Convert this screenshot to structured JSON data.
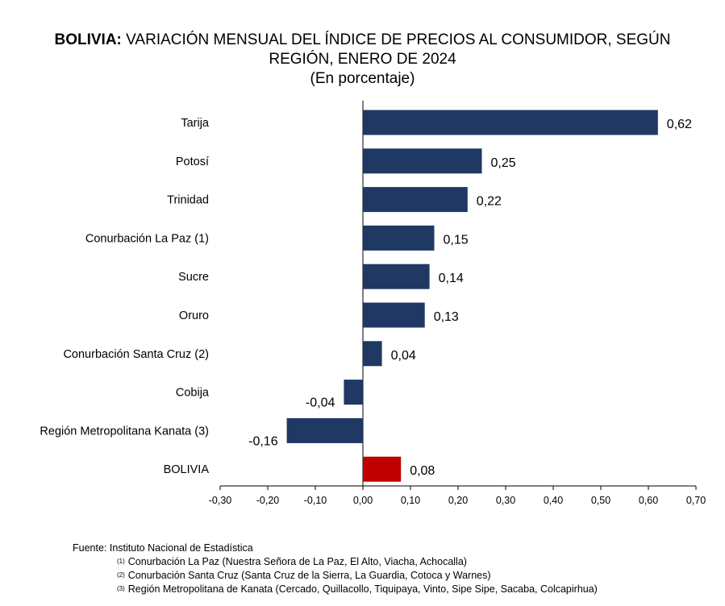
{
  "title": {
    "bold": "BOLIVIA:",
    "line1": "VARIACIÓN MENSUAL DEL ÍNDICE DE PRECIOS AL CONSUMIDOR, SEGÚN",
    "line2": "REGIÓN, ENERO DE 2024",
    "line3": "(En porcentaje)"
  },
  "chart_data": {
    "type": "bar",
    "orientation": "horizontal",
    "title": "BOLIVIA: VARIACIÓN MENSUAL DEL ÍNDICE DE PRECIOS AL CONSUMIDOR, SEGÚN REGIÓN, ENERO DE 2024",
    "subtitle": "(En porcentaje)",
    "categories": [
      "Tarija",
      "Potosí",
      "Trinidad",
      "Conurbación La Paz (1)",
      "Sucre",
      "Oruro",
      "Conurbación Santa Cruz (2)",
      "Cobija",
      "Región Metropolitana Kanata (3)",
      "BOLIVIA"
    ],
    "values": [
      0.62,
      0.25,
      0.22,
      0.15,
      0.14,
      0.13,
      0.04,
      -0.04,
      -0.16,
      0.08
    ],
    "value_labels": [
      "0,62",
      "0,25",
      "0,22",
      "0,15",
      "0,14",
      "0,13",
      "0,04",
      "-0,04",
      "-0,16",
      "0,08"
    ],
    "bar_colors": [
      "#1f3864",
      "#1f3864",
      "#1f3864",
      "#1f3864",
      "#1f3864",
      "#1f3864",
      "#1f3864",
      "#1f3864",
      "#1f3864",
      "#c00000"
    ],
    "xlim": [
      -0.3,
      0.7
    ],
    "xticks": [
      -0.3,
      -0.2,
      -0.1,
      0.0,
      0.1,
      0.2,
      0.3,
      0.4,
      0.5,
      0.6,
      0.7
    ],
    "xtick_labels": [
      "-0,30",
      "-0,20",
      "-0,10",
      "0,00",
      "0,10",
      "0,20",
      "0,30",
      "0,40",
      "0,50",
      "0,60",
      "0,70"
    ],
    "xlabel": "",
    "ylabel": "",
    "grid": false
  },
  "source": {
    "main": "Fuente: Instituto Nacional de Estadística",
    "notes": [
      {
        "mark": "(1)",
        "text": "Conurbación La Paz (Nuestra Señora de La Paz, El Alto, Viacha, Achocalla)"
      },
      {
        "mark": "(2)",
        "text": "Conurbación Santa Cruz (Santa Cruz de la Sierra, La Guardia, Cotoca y Warnes)"
      },
      {
        "mark": "(3)",
        "text": "Región Metropolitana de Kanata (Cercado, Quillacollo, Tiquipaya, Vinto, Sipe Sipe, Sacaba, Colcapirhua)"
      }
    ]
  }
}
